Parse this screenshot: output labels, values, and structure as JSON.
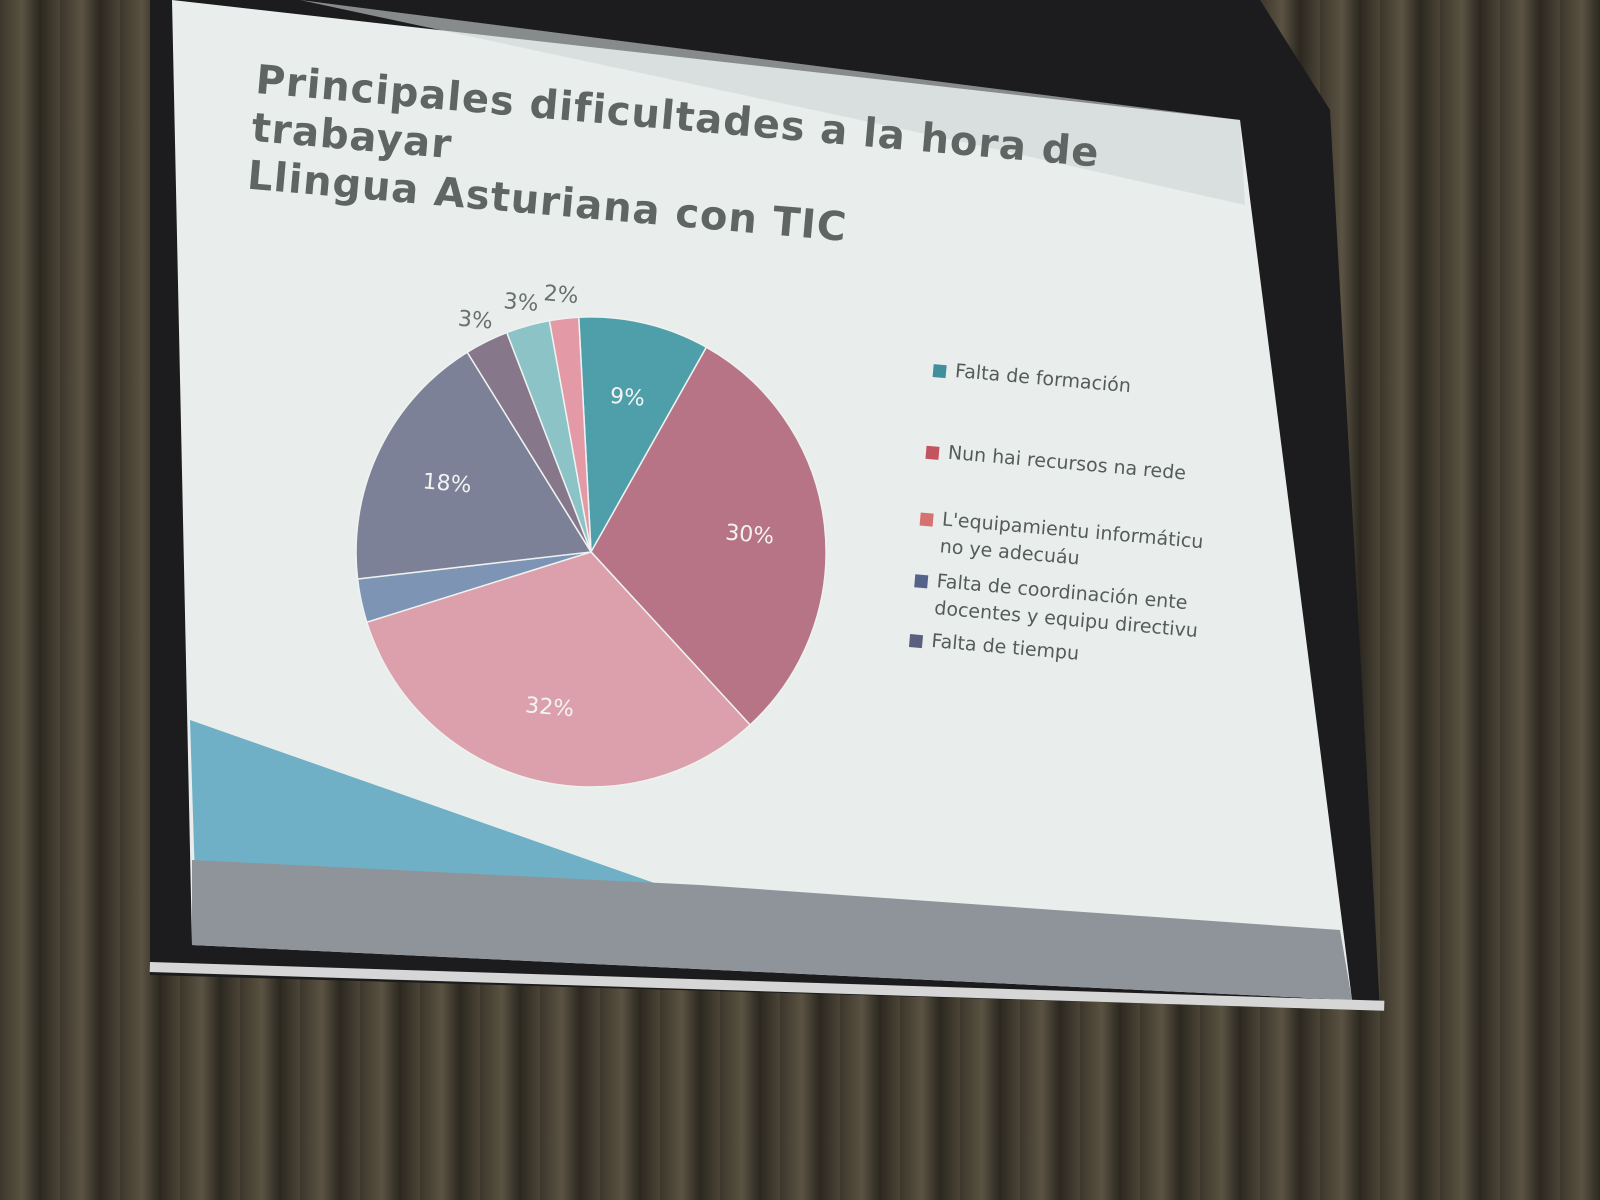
{
  "chart_data": {
    "type": "pie",
    "title": "Principales dificultades a la hora de trabayar Llingua Asturiana con TIC",
    "title_lines": [
      "Principales dificultades a la hora de trabayar",
      "Llingua Asturiana con TIC"
    ],
    "slices": [
      {
        "value": 9,
        "label": "9%",
        "color": "#4f9fab"
      },
      {
        "value": 30,
        "label": "30%",
        "color": "#b77486"
      },
      {
        "value": 32,
        "label": "32%",
        "color": "#dba0ab"
      },
      {
        "value": 3,
        "label": "",
        "color": "#7d94b5"
      },
      {
        "value": 18,
        "label": "18%",
        "color": "#7c8197"
      },
      {
        "value": 3,
        "label": "3%",
        "color": "#86788a"
      },
      {
        "value": 3,
        "label": "3%",
        "color": "#8bc3c7"
      },
      {
        "value": 2,
        "label": "2%",
        "color": "#e39aa6"
      }
    ],
    "legend_position": "right",
    "legend": [
      {
        "label": "Falta de formación",
        "color": "#3f8f9c"
      },
      {
        "label": "Nun hai recursos na rede",
        "color": "#c2545f"
      },
      {
        "label": "L'equipamientu informáticu no ye adecuáu",
        "color": "#d77070"
      },
      {
        "label": "Falta de coordinación ente docentes y equipu directivu",
        "color": "#55638a"
      },
      {
        "label": "Falta de tiempu",
        "color": "#5b6080"
      }
    ]
  }
}
